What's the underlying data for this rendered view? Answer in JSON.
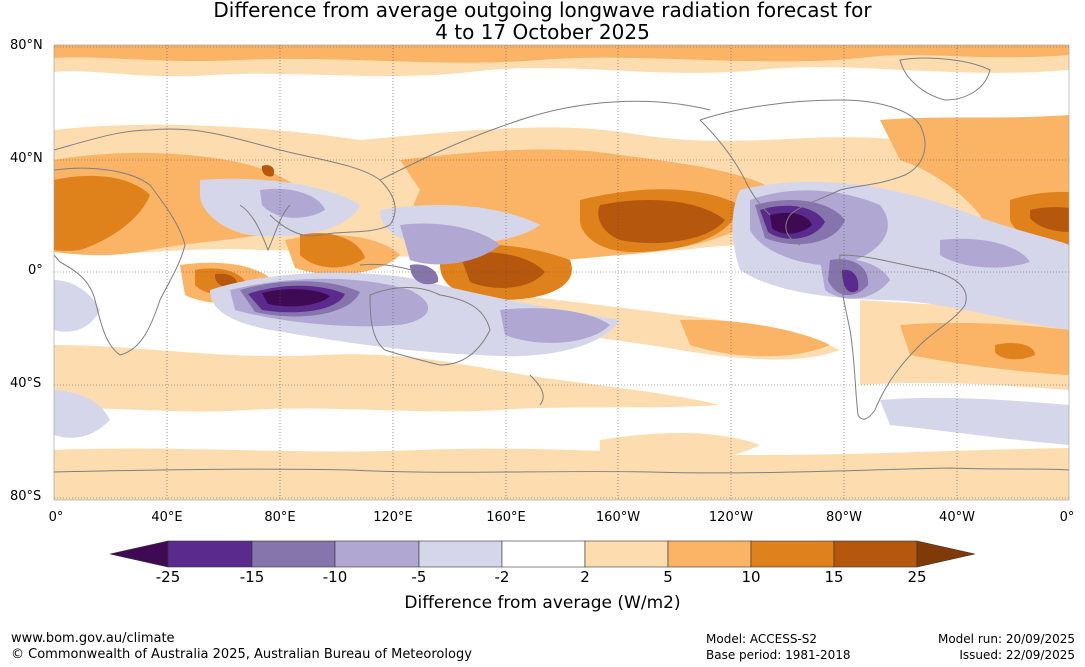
{
  "title": {
    "line1": "Difference from average outgoing longwave radiation forecast for",
    "line2": "4 to 17 October 2025"
  },
  "map": {
    "lat_labels": [
      "80°N",
      "40°N",
      "0°",
      "40°S",
      "80°S"
    ],
    "lon_labels": [
      "0°",
      "40°E",
      "80°E",
      "120°E",
      "160°E",
      "160°W",
      "120°W",
      "80°W",
      "40°W",
      "0°"
    ],
    "land_color": "#7f7f7f",
    "grid_color": "#555555"
  },
  "colorbar": {
    "title": "Difference from average (W/m2)",
    "tick_labels": [
      "-25",
      "-15",
      "-10",
      "-5",
      "-2",
      "2",
      "5",
      "10",
      "15",
      "25"
    ],
    "colors": [
      "#3f0a54",
      "#5a2a8c",
      "#8674ad",
      "#b0a8d2",
      "#d6d6ea",
      "#ffffff",
      "#fdddb0",
      "#fbb466",
      "#e0821c",
      "#b5580d",
      "#7f3a08"
    ]
  },
  "footer": {
    "url": "www.bom.gov.au/climate",
    "copyright": "© Commonwealth of Australia 2025, Australian Bureau of Meteorology",
    "model": "Model: ACCESS-S2",
    "base_period": "Base period: 1981-2018",
    "model_run": "Model run: 20/09/2025",
    "issued": "Issued: 22/09/2025"
  }
}
